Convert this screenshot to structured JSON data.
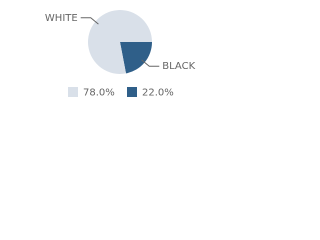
{
  "chart_data": {
    "type": "pie",
    "categories": [
      "WHITE",
      "BLACK"
    ],
    "values": [
      78.0,
      22.0
    ],
    "value_labels": [
      "78.0%",
      "22.0%"
    ],
    "colors": [
      "#d9e0e9",
      "#2f5f89"
    ]
  }
}
